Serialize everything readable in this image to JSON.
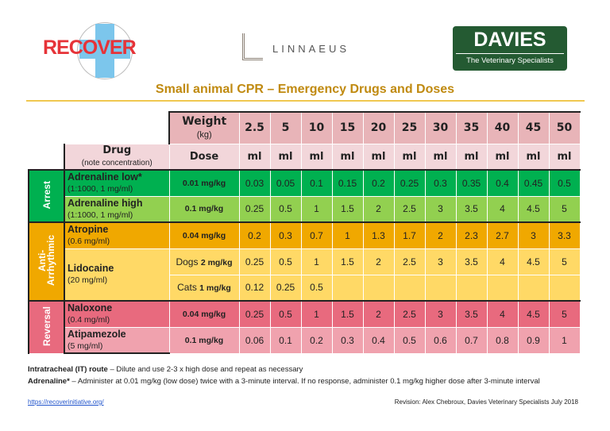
{
  "logos": {
    "recover": "RECOVER",
    "linnaeus": "LINNAEUS",
    "davies": "DAVIES",
    "davies_tagline": "The Veterinary Specialists"
  },
  "title": "Small animal CPR – Emergency Drugs and Doses",
  "header": {
    "weight_label": "Weight",
    "weight_unit": "(kg)",
    "drug_label": "Drug",
    "drug_note": "(note concentration)",
    "dose_label": "Dose",
    "weights": [
      "2.5",
      "5",
      "10",
      "15",
      "20",
      "25",
      "30",
      "35",
      "40",
      "45",
      "50"
    ],
    "unit": "ml"
  },
  "groups": {
    "arrest": "Arrest",
    "anti": "Anti-\nArrhythmic",
    "reversal": "Reversal"
  },
  "colors": {
    "arrest": "#3f8f4a",
    "adrenaline_low": "#00b050",
    "adrenaline_high": "#92d050",
    "anti": "#b8860b",
    "atropine": "#f0a800",
    "lidocaine": "#ffd966",
    "reversal": "#d8203c",
    "naloxone": "#e86a7e",
    "atipamezole": "#f0a2ae",
    "title": "#c08a10"
  },
  "rows": {
    "adr_low": {
      "name": "Adrenaline low*",
      "conc": "(1:1000, 1 mg/ml)",
      "dose": "0.01 mg/kg",
      "values": [
        "0.03",
        "0.05",
        "0.1",
        "0.15",
        "0.2",
        "0.25",
        "0.3",
        "0.35",
        "0.4",
        "0.45",
        "0.5"
      ]
    },
    "adr_high": {
      "name": "Adrenaline high",
      "conc": "(1:1000, 1 mg/ml)",
      "dose": "0.1 mg/kg",
      "values": [
        "0.25",
        "0.5",
        "1",
        "1.5",
        "2",
        "2.5",
        "3",
        "3.5",
        "4",
        "4.5",
        "5"
      ]
    },
    "atropine": {
      "name": "Atropine",
      "conc": "(0.6 mg/ml)",
      "dose": "0.04 mg/kg",
      "values": [
        "0.2",
        "0.3",
        "0.7",
        "1",
        "1.3",
        "1.7",
        "2",
        "2.3",
        "2.7",
        "3",
        "3.3"
      ]
    },
    "lido_dogs": {
      "name": "Lidocaine",
      "conc": "(20 mg/ml)",
      "species": "Dogs",
      "dose": "2 mg/kg",
      "values": [
        "0.25",
        "0.5",
        "1",
        "1.5",
        "2",
        "2.5",
        "3",
        "3.5",
        "4",
        "4.5",
        "5"
      ]
    },
    "lido_cats": {
      "species": "Cats",
      "dose": "1 mg/kg",
      "values": [
        "0.12",
        "0.25",
        "0.5",
        "",
        "",
        "",
        "",
        "",
        "",
        "",
        ""
      ]
    },
    "naloxone": {
      "name": "Naloxone",
      "conc": "(0.4 mg/ml)",
      "dose": "0.04 mg/kg",
      "values": [
        "0.25",
        "0.5",
        "1",
        "1.5",
        "2",
        "2.5",
        "3",
        "3.5",
        "4",
        "4.5",
        "5"
      ]
    },
    "atipamezole": {
      "name": "Atipamezole",
      "conc": "(5 mg/ml)",
      "dose": "0.1 mg/kg",
      "values": [
        "0.06",
        "0.1",
        "0.2",
        "0.3",
        "0.4",
        "0.5",
        "0.6",
        "0.7",
        "0.8",
        "0.9",
        "1"
      ]
    }
  },
  "notes": {
    "it_label": "Intratracheal (IT) route",
    "it_text": " – Dilute and use 2-3 x high dose and repeat as necessary",
    "adr_label": "Adrenaline*",
    "adr_text": " – Administer at 0.01 mg/kg (low dose) twice with a 3-minute interval. If no response, administer 0.1 mg/kg higher dose after 3-minute interval"
  },
  "footer": {
    "url": "https://recoverinitiative.org/",
    "revision": "Revision: Alex Chebroux, Davies Veterinary Specialists July 2018"
  }
}
